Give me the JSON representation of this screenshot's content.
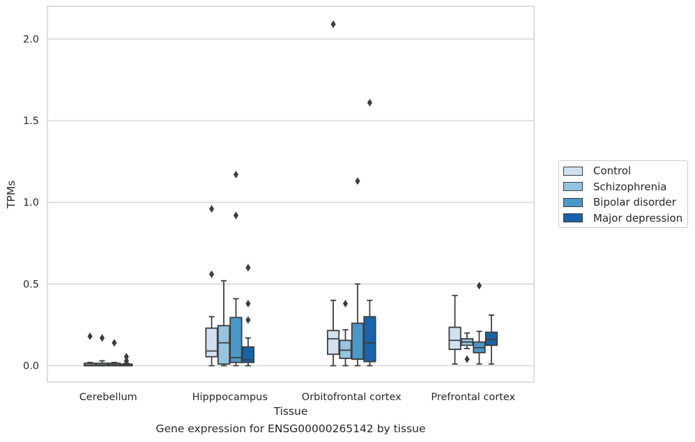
{
  "caption": "Gene expression for ENSG00000265142 by tissue",
  "chart_data": {
    "type": "box",
    "xlabel": "Tissue",
    "ylabel": "TPMs",
    "ylim": [
      -0.1,
      2.2
    ],
    "yticks": [
      0.0,
      0.5,
      1.0,
      1.5,
      2.0
    ],
    "ytick_labels": [
      "0.0",
      "0.5",
      "1.0",
      "1.5",
      "2.0"
    ],
    "grid": "horizontal",
    "legend_position": "right",
    "categories": [
      "Cerebellum",
      "Hipppocampus",
      "Orbitofrontal cortex",
      "Prefrontal cortex"
    ],
    "series": [
      {
        "name": "Control",
        "color": "#d0e1f2",
        "boxes": [
          {
            "whislo": 0.0,
            "q1": 0.0,
            "med": 0.005,
            "q3": 0.015,
            "whishi": 0.02,
            "fliers": [
              0.18
            ]
          },
          {
            "whislo": 0.0,
            "q1": 0.055,
            "med": 0.09,
            "q3": 0.23,
            "whishi": 0.3,
            "fliers": [
              0.56,
              0.96
            ]
          },
          {
            "whislo": 0.0,
            "q1": 0.07,
            "med": 0.165,
            "q3": 0.215,
            "whishi": 0.4,
            "fliers": [
              2.09
            ]
          },
          {
            "whislo": 0.01,
            "q1": 0.1,
            "med": 0.155,
            "q3": 0.235,
            "whishi": 0.43,
            "fliers": []
          }
        ]
      },
      {
        "name": "Schizophrenia",
        "color": "#94c4df",
        "boxes": [
          {
            "whislo": 0.0,
            "q1": 0.0,
            "med": 0.005,
            "q3": 0.015,
            "whishi": 0.03,
            "fliers": [
              0.17
            ]
          },
          {
            "whislo": 0.0,
            "q1": 0.01,
            "med": 0.14,
            "q3": 0.245,
            "whishi": 0.52,
            "fliers": []
          },
          {
            "whislo": 0.0,
            "q1": 0.045,
            "med": 0.095,
            "q3": 0.155,
            "whishi": 0.22,
            "fliers": [
              0.38
            ]
          },
          {
            "whislo": 0.105,
            "q1": 0.125,
            "med": 0.145,
            "q3": 0.165,
            "whishi": 0.2,
            "fliers": [
              0.04
            ]
          }
        ]
      },
      {
        "name": "Bipolar disorder",
        "color": "#4a98c9",
        "boxes": [
          {
            "whislo": 0.0,
            "q1": 0.0,
            "med": 0.005,
            "q3": 0.015,
            "whishi": 0.02,
            "fliers": [
              0.14
            ]
          },
          {
            "whislo": 0.0,
            "q1": 0.02,
            "med": 0.05,
            "q3": 0.295,
            "whishi": 0.41,
            "fliers": [
              0.92,
              1.17
            ]
          },
          {
            "whislo": 0.0,
            "q1": 0.04,
            "med": 0.04,
            "q3": 0.26,
            "whishi": 0.5,
            "fliers": [
              1.13
            ]
          },
          {
            "whislo": 0.01,
            "q1": 0.08,
            "med": 0.11,
            "q3": 0.145,
            "whishi": 0.21,
            "fliers": [
              0.49
            ]
          }
        ]
      },
      {
        "name": "Major depression",
        "color": "#1764ab",
        "boxes": [
          {
            "whislo": 0.0,
            "q1": 0.0,
            "med": 0.005,
            "q3": 0.01,
            "whishi": 0.015,
            "fliers": [
              0.03,
              0.055
            ]
          },
          {
            "whislo": 0.0,
            "q1": 0.02,
            "med": 0.035,
            "q3": 0.115,
            "whishi": 0.17,
            "fliers": [
              0.28,
              0.38,
              0.6
            ]
          },
          {
            "whislo": 0.0,
            "q1": 0.025,
            "med": 0.14,
            "q3": 0.3,
            "whishi": 0.4,
            "fliers": [
              1.61
            ]
          },
          {
            "whislo": 0.01,
            "q1": 0.125,
            "med": 0.16,
            "q3": 0.205,
            "whishi": 0.31,
            "fliers": []
          }
        ]
      }
    ]
  }
}
